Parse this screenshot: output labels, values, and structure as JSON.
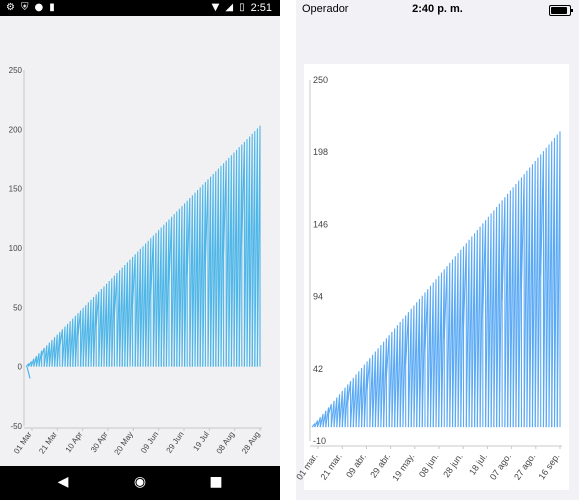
{
  "android": {
    "status_time": "2:51",
    "icons": [
      "gear-icon",
      "shield-icon",
      "circle-icon",
      "sd-card-icon",
      "wifi-icon",
      "signal-icon",
      "battery-icon"
    ],
    "nav": [
      "back-icon",
      "home-icon",
      "recent-apps-icon"
    ]
  },
  "ios": {
    "carrier": "Operador",
    "status_time": "2:40 p. m."
  },
  "chart_data": [
    {
      "type": "area",
      "platform": "android",
      "ylim": [
        -50,
        250
      ],
      "yticks": [
        "250",
        "200",
        "150",
        "100",
        "50",
        "0",
        "-50"
      ],
      "xticks": [
        "01 Mar",
        "21 Mar",
        "10 Apr",
        "30 Apr",
        "20 May",
        "09 Jun",
        "29 Jun",
        "19 Jul",
        "08 Aug",
        "28 Aug"
      ],
      "series_color": "#4db6e8",
      "peak": 203,
      "note": "sawtooth series rising from ~0 to ~203 from 01 Mar to mid Sep, dropping to 0 periodically"
    },
    {
      "type": "area",
      "platform": "ios",
      "ylim": [
        -10,
        250
      ],
      "yticks": [
        "250",
        "198",
        "146",
        "94",
        "42",
        "-10"
      ],
      "xticks": [
        "01 mar.",
        "21 mar.",
        "09 abr.",
        "29 abr.",
        "19 may.",
        "08 jun.",
        "28 jun.",
        "18 jul.",
        "07 ago.",
        "27 ago.",
        "16 sep."
      ],
      "series_color": "#5aa9f5",
      "peak": 213
    }
  ]
}
